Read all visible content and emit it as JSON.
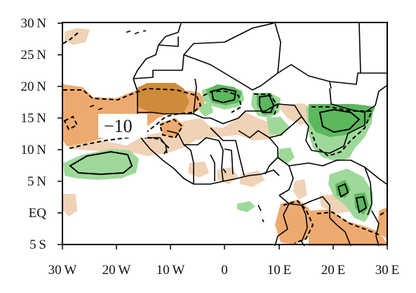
{
  "map": {
    "x_ticks": [
      "30W",
      "20W",
      "10W",
      "0",
      "10E",
      "20E",
      "30E"
    ],
    "y_ticks": [
      "30N",
      "25N",
      "20N",
      "15N",
      "10N",
      "5N",
      "EQ",
      "5S"
    ],
    "extent": {
      "lon": [
        -30,
        30
      ],
      "lat": [
        -5,
        30
      ]
    },
    "contour_label": "−10",
    "colors": {
      "light_tan": "#f0d2b6",
      "orange": "#eeaa6e",
      "dark_brown": "#cf8b3a",
      "light_green": "#9ed99a",
      "green": "#5bb85d",
      "borders": "#000000"
    }
  }
}
